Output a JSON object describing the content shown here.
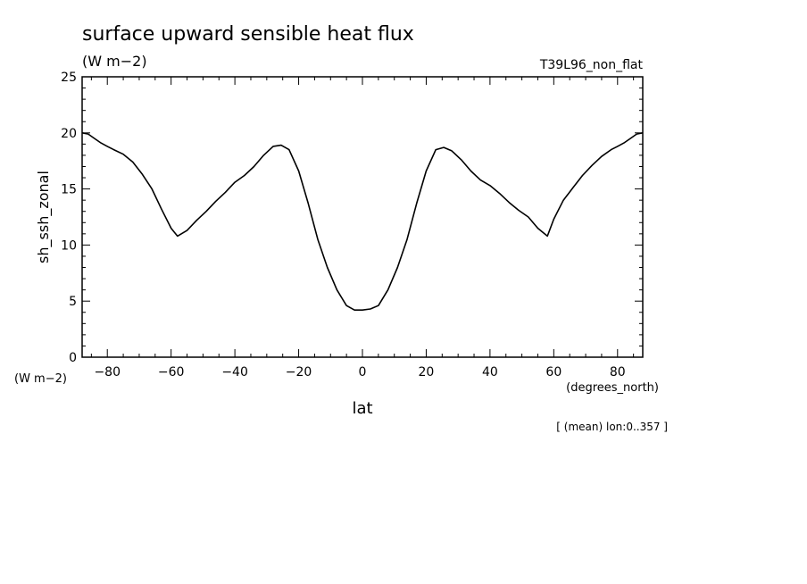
{
  "chart_data": {
    "type": "line",
    "title": "surface upward sensible heat flux",
    "units": "(W m−2)",
    "run_label": "T39L96_non_flat",
    "ylabel": "sh_ssh_zonal",
    "yunits": "(W m−2)",
    "xlabel": "lat",
    "xunits": "(degrees_north)",
    "footnote": "[ (mean) lon:0..357 ]",
    "xlim": [
      -87.9,
      87.9
    ],
    "ylim": [
      0,
      25
    ],
    "x_ticks": [
      -80,
      -60,
      -40,
      -20,
      0,
      20,
      40,
      60,
      80
    ],
    "y_ticks": [
      0,
      5,
      10,
      15,
      20,
      25
    ],
    "grid": false,
    "series": [
      {
        "x": [
          -87.9,
          -86,
          -84,
          -82,
          -80,
          -78,
          -75,
          -72,
          -69,
          -66,
          -63,
          -60,
          -58,
          -55,
          -52,
          -49,
          -46,
          -43,
          -40,
          -37,
          -34,
          -31,
          -28,
          -25.5,
          -23,
          -20,
          -17,
          -14,
          -11,
          -8,
          -5,
          -2.5,
          0,
          2.5,
          5,
          8,
          11,
          14,
          17,
          20,
          23,
          25.5,
          28,
          31,
          34,
          37,
          40,
          43,
          46,
          49,
          52,
          55,
          58,
          60,
          63,
          66,
          69,
          72,
          75,
          78,
          80,
          82,
          84,
          86,
          87.9
        ],
        "y": [
          20.0,
          19.9,
          19.5,
          19.1,
          18.8,
          18.5,
          18.1,
          17.4,
          16.3,
          15.0,
          13.2,
          11.5,
          10.8,
          11.3,
          12.2,
          13.0,
          13.9,
          14.7,
          15.6,
          16.2,
          17.0,
          18.0,
          18.8,
          18.9,
          18.5,
          16.6,
          13.7,
          10.5,
          8.0,
          6.0,
          4.6,
          4.2,
          4.2,
          4.3,
          4.6,
          6.0,
          8.0,
          10.5,
          13.7,
          16.6,
          18.5,
          18.7,
          18.4,
          17.6,
          16.6,
          15.8,
          15.3,
          14.6,
          13.8,
          13.1,
          12.5,
          11.5,
          10.8,
          12.3,
          14.0,
          15.1,
          16.2,
          17.1,
          17.9,
          18.5,
          18.8,
          19.1,
          19.5,
          19.9,
          20.0
        ]
      }
    ]
  }
}
